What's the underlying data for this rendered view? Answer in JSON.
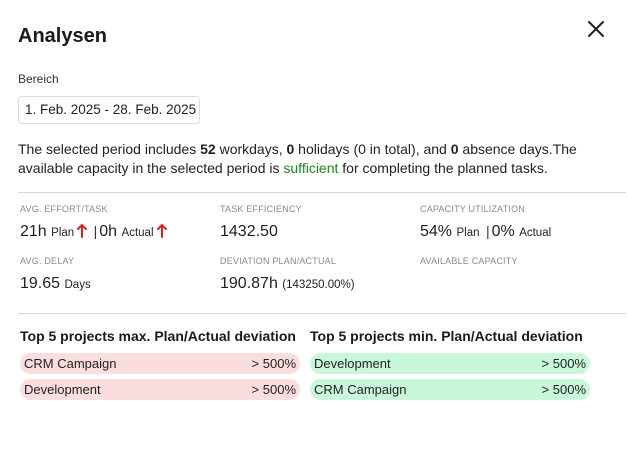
{
  "dialog": {
    "title": "Analysen"
  },
  "range": {
    "label": "Bereich",
    "value": "1. Feb. 2025 - 28. Feb. 2025"
  },
  "summary": {
    "text1": "The selected period includes ",
    "workdays": "52",
    "text2": " workdays, ",
    "holidays": "0",
    "text3": " holidays (0 in total), and ",
    "absence": "0",
    "text4": " absence days.The available capacity in the selected period is ",
    "status": "sufficient",
    "text5": " for completing the planned tasks.",
    "status_color": "#1a8a1a"
  },
  "metrics": {
    "avg_effort": {
      "label": "AVG. EFFORT/TASK",
      "plan_value": "21h",
      "plan_label": "Plan",
      "separator": "|",
      "actual_value": "0h",
      "actual_label": "Actual",
      "trend_icon": "arrow-up-icon",
      "trend_color": "#e02020"
    },
    "task_efficiency": {
      "label": "TASK EFFICIENCY",
      "value": "1432.50"
    },
    "capacity_utilization": {
      "label": "CAPACITY UTILIZATION",
      "plan_value": "54%",
      "plan_label": "Plan",
      "separator": "|",
      "actual_value": "0%",
      "actual_label": "Actual"
    },
    "avg_delay": {
      "label": "AVG. DELAY",
      "value": "19.65",
      "unit": "Days"
    },
    "deviation": {
      "label": "DEVIATION PLAN/ACTUAL",
      "value": "190.87h",
      "percent": "(143250.00%)"
    },
    "available_capacity": {
      "label": "AVAILABLE CAPACITY"
    }
  },
  "top_max": {
    "title": "Top 5 projects max. Plan/Actual deviation",
    "color": "#fadede",
    "items": [
      {
        "name": "CRM Campaign",
        "value": "> 500%"
      },
      {
        "name": "Development",
        "value": "> 500%"
      }
    ]
  },
  "top_min": {
    "title": "Top 5 projects min. Plan/Actual deviation",
    "color": "#c8f7da",
    "items": [
      {
        "name": "Development",
        "value": "> 500%"
      },
      {
        "name": "CRM Campaign",
        "value": "> 500%"
      }
    ]
  }
}
